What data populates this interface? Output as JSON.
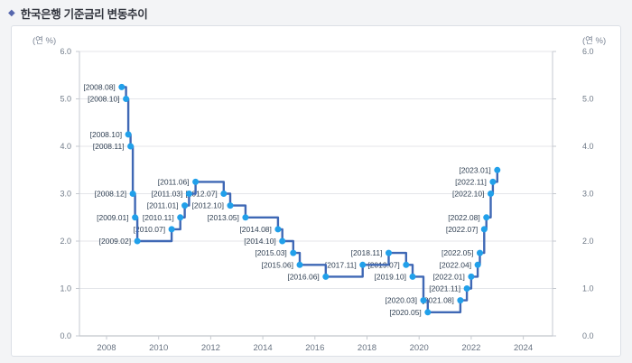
{
  "header": {
    "bullet": "◆",
    "title": "한국은행 기준금리 변동추이"
  },
  "panel": {
    "unit_left": "(연 %)",
    "unit_right": "(연 %)"
  },
  "colors": {
    "line": "#3f68b5",
    "marker": "#21a0ea",
    "grid": "#e4e6ea",
    "axis": "#c6cad0",
    "axis_strong": "#b3b8bf",
    "accent": "#5566ad"
  },
  "chart_data": {
    "type": "line",
    "step": "after",
    "title": "한국은행 기준금리 변동추이",
    "ylabel_left": "(연 %)",
    "ylabel_right": "(연 %)",
    "ylim": [
      0.0,
      6.0
    ],
    "grid": "horizontal only",
    "legend": "none",
    "yticks": [
      6.0,
      5.0,
      4.0,
      3.0,
      2.0,
      1.0,
      0.0
    ],
    "ytick_labels": [
      "6.0",
      "5.0",
      "4.0",
      "3.0",
      "2.0",
      "1.0",
      "0.0"
    ],
    "xtick_labels": [
      "2008",
      "2010",
      "2012",
      "2014",
      "2016",
      "2018",
      "2020",
      "2022",
      "2024"
    ],
    "points": [
      {
        "date": "2008.08",
        "label": "[2008.08]",
        "rate": 5.25
      },
      {
        "date": "2008.10",
        "label": "[2008.10]",
        "rate": 5.0
      },
      {
        "date": "2008.10",
        "label": "[2008.10]",
        "rate": 4.25
      },
      {
        "date": "2008.11",
        "label": "[2008.11]",
        "rate": 4.0
      },
      {
        "date": "2008.12",
        "label": "[2008.12]",
        "rate": 3.0
      },
      {
        "date": "2009.01",
        "label": "[2009.01]",
        "rate": 2.5
      },
      {
        "date": "2009.02",
        "label": "[2009.02]",
        "rate": 2.0
      },
      {
        "date": "2010.07",
        "label": "[2010.07]",
        "rate": 2.25
      },
      {
        "date": "2010.11",
        "label": "[2010.11]",
        "rate": 2.5
      },
      {
        "date": "2011.01",
        "label": "[2011.01]",
        "rate": 2.75
      },
      {
        "date": "2011.03",
        "label": "[2011.03]",
        "rate": 3.0
      },
      {
        "date": "2011.06",
        "label": "[2011.06]",
        "rate": 3.25
      },
      {
        "date": "2012.07",
        "label": "[2012.07]",
        "rate": 3.0
      },
      {
        "date": "2012.10",
        "label": "[2012.10]",
        "rate": 2.75
      },
      {
        "date": "2013.05",
        "label": "[2013.05]",
        "rate": 2.5
      },
      {
        "date": "2014.08",
        "label": "[2014.08]",
        "rate": 2.25
      },
      {
        "date": "2014.10",
        "label": "[2014.10]",
        "rate": 2.0
      },
      {
        "date": "2015.03",
        "label": "[2015.03]",
        "rate": 1.75
      },
      {
        "date": "2015.06",
        "label": "[2015.06]",
        "rate": 1.5
      },
      {
        "date": "2016.06",
        "label": "[2016.06]",
        "rate": 1.25
      },
      {
        "date": "2017.11",
        "label": "[2017.11]",
        "rate": 1.5
      },
      {
        "date": "2018.11",
        "label": "[2018.11]",
        "rate": 1.75
      },
      {
        "date": "2019.07",
        "label": "[2019.07]",
        "rate": 1.5
      },
      {
        "date": "2019.10",
        "label": "[2019.10]",
        "rate": 1.25
      },
      {
        "date": "2020.03",
        "label": "[2020.03]",
        "rate": 0.75
      },
      {
        "date": "2020.05",
        "label": "[2020.05]",
        "rate": 0.5
      },
      {
        "date": "2021.08",
        "label": "[2021.08]",
        "rate": 0.75
      },
      {
        "date": "2021.11",
        "label": "[2021.11]",
        "rate": 1.0
      },
      {
        "date": "2022.01",
        "label": "[2022.01]",
        "rate": 1.25
      },
      {
        "date": "2022.04",
        "label": "[2022.04]",
        "rate": 1.5
      },
      {
        "date": "2022.05",
        "label": "[2022.05]",
        "rate": 1.75
      },
      {
        "date": "2022.07",
        "label": "[2022.07]",
        "rate": 2.25
      },
      {
        "date": "2022.08",
        "label": "[2022.08]",
        "rate": 2.5
      },
      {
        "date": "2022.10",
        "label": "[2022.10]",
        "rate": 3.0
      },
      {
        "date": "2022.11",
        "label": "[2022.11]",
        "rate": 3.25
      },
      {
        "date": "2023.01",
        "label": "[2023.01]",
        "rate": 3.5
      }
    ]
  }
}
